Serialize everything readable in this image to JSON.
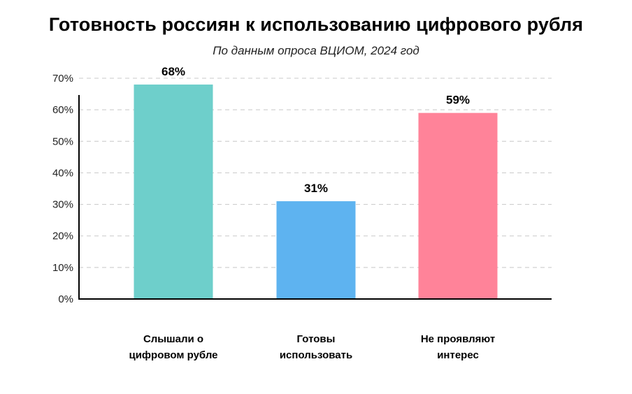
{
  "chart_data": {
    "type": "bar",
    "title": "Готовность россиян к использованию цифрового рубля",
    "subtitle": "По данным опроса ВЦИОМ, 2024 год",
    "categories": [
      [
        "Слышали о",
        "цифровом рубле"
      ],
      [
        "Готовы",
        "использовать"
      ],
      [
        "Не проявляют",
        "интерес"
      ]
    ],
    "values": [
      68,
      31,
      59
    ],
    "value_labels": [
      "68%",
      "31%",
      "59%"
    ],
    "colors": [
      "#6ECFCB",
      "#5EB3F0",
      "#FF8399"
    ],
    "ylim": [
      0,
      70
    ],
    "yticks": [
      0,
      10,
      20,
      30,
      40,
      50,
      60,
      70
    ],
    "ytick_labels": [
      "0%",
      "10%",
      "20%",
      "30%",
      "40%",
      "50%",
      "60%",
      "70%"
    ],
    "grid": true,
    "xlabel": "",
    "ylabel": ""
  }
}
